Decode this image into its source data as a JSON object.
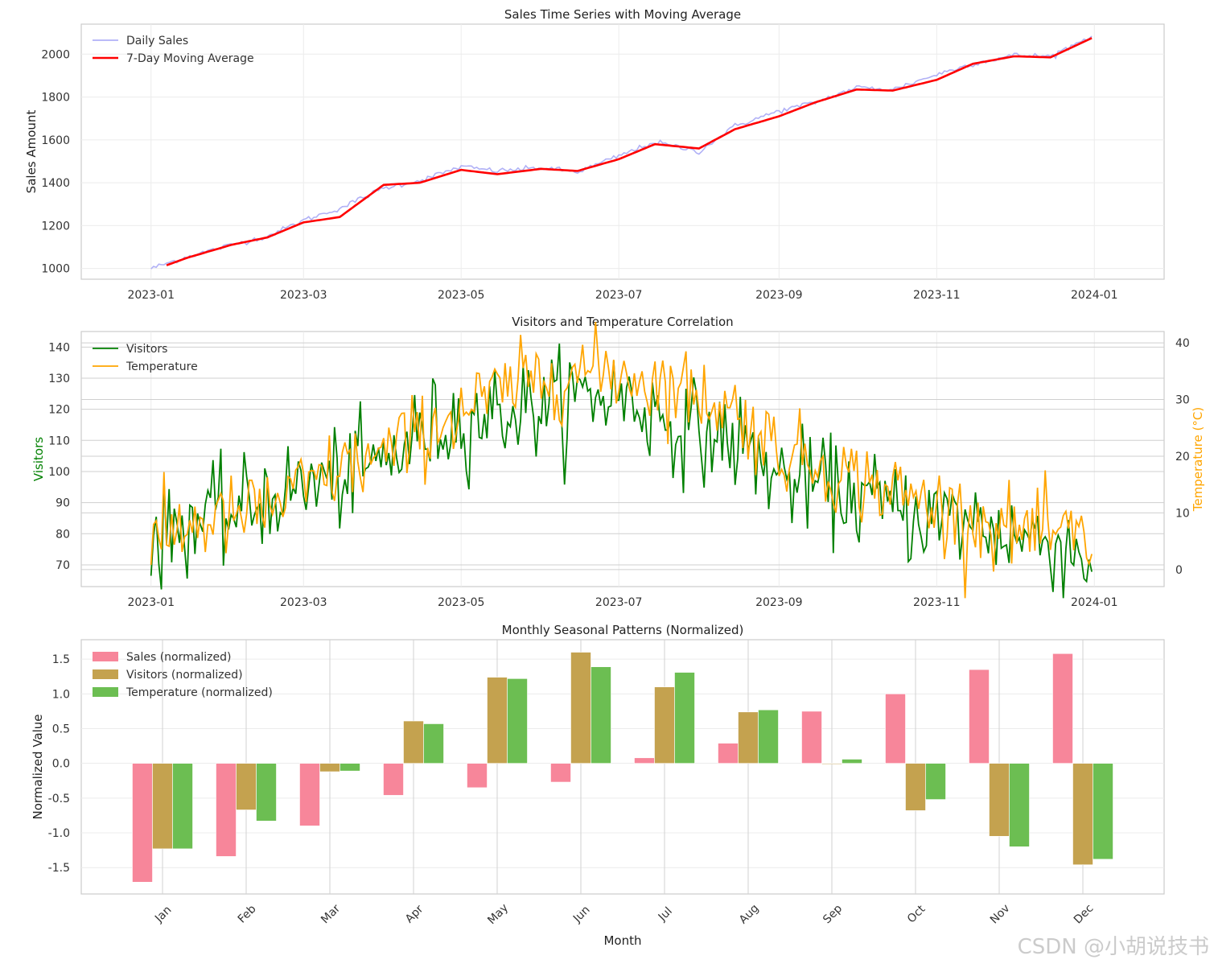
{
  "watermark": "CSDN @小胡说技书",
  "colors": {
    "daily": "#a3a3f5",
    "ma": "#ff0000",
    "visitors": "#008000",
    "temperature": "#ffa500",
    "sales_bar": "#f7869a",
    "visitors_bar": "#c4a24f",
    "temperature_bar": "#6cbe52"
  },
  "chart_data": [
    {
      "type": "line",
      "title": "Sales Time Series with Moving Average",
      "xlabel": "",
      "ylabel": "Sales Amount",
      "x_ticks": [
        "2023-01",
        "2023-03",
        "2023-05",
        "2023-07",
        "2023-09",
        "2023-11",
        "2024-01"
      ],
      "y_ticks": [
        1000,
        1200,
        1400,
        1600,
        1800,
        2000
      ],
      "ylim": [
        950,
        2140
      ],
      "legend": "top-left",
      "grid": true,
      "series": [
        {
          "name": "Daily Sales",
          "color": "#a3a3f5",
          "x": [
            "2023-01-01",
            "2023-01-15",
            "2023-02-01",
            "2023-02-15",
            "2023-03-01",
            "2023-03-15",
            "2023-04-01",
            "2023-04-15",
            "2023-05-01",
            "2023-05-15",
            "2023-06-01",
            "2023-06-15",
            "2023-07-01",
            "2023-07-15",
            "2023-08-01",
            "2023-08-15",
            "2023-09-01",
            "2023-09-15",
            "2023-10-01",
            "2023-10-15",
            "2023-11-01",
            "2023-11-15",
            "2023-12-01",
            "2023-12-15",
            "2023-12-31"
          ],
          "values": [
            1000,
            1055,
            1110,
            1150,
            1225,
            1280,
            1375,
            1410,
            1475,
            1455,
            1470,
            1450,
            1525,
            1590,
            1545,
            1665,
            1735,
            1775,
            1845,
            1835,
            1905,
            1955,
            1995,
            1990,
            2085
          ]
        },
        {
          "name": "7-Day Moving Average",
          "color": "#ff0000",
          "x": [
            "2023-01-07",
            "2023-01-15",
            "2023-02-01",
            "2023-02-15",
            "2023-03-01",
            "2023-03-15",
            "2023-04-01",
            "2023-04-15",
            "2023-05-01",
            "2023-05-15",
            "2023-06-01",
            "2023-06-15",
            "2023-07-01",
            "2023-07-15",
            "2023-08-01",
            "2023-08-15",
            "2023-09-01",
            "2023-09-15",
            "2023-10-01",
            "2023-10-15",
            "2023-11-01",
            "2023-11-15",
            "2023-12-01",
            "2023-12-15",
            "2023-12-31"
          ],
          "values": [
            1015,
            1050,
            1110,
            1145,
            1215,
            1240,
            1390,
            1400,
            1460,
            1440,
            1465,
            1455,
            1510,
            1580,
            1560,
            1650,
            1710,
            1775,
            1835,
            1830,
            1880,
            1955,
            1990,
            1985,
            2075
          ]
        }
      ]
    },
    {
      "type": "line",
      "title": "Visitors and Temperature Correlation",
      "xlabel": "",
      "ylabel": "Visitors",
      "ylabel_right": "Temperature (°C)",
      "x_ticks": [
        "2023-01",
        "2023-03",
        "2023-05",
        "2023-07",
        "2023-09",
        "2023-11",
        "2024-01"
      ],
      "y_ticks": [
        70,
        80,
        90,
        100,
        110,
        120,
        130,
        140
      ],
      "y_ticks_right": [
        0,
        10,
        20,
        30,
        40
      ],
      "ylim": [
        63,
        145
      ],
      "ylim_right": [
        -3,
        42
      ],
      "legend": "top-left",
      "grid": true,
      "series": [
        {
          "name": "Visitors",
          "color": "#008000",
          "axis": "left",
          "x": [
            "2023-01-01",
            "2023-01-15",
            "2023-02-01",
            "2023-02-15",
            "2023-03-01",
            "2023-03-15",
            "2023-04-01",
            "2023-04-15",
            "2023-05-01",
            "2023-05-15",
            "2023-06-01",
            "2023-06-15",
            "2023-07-01",
            "2023-07-15",
            "2023-08-01",
            "2023-08-15",
            "2023-09-01",
            "2023-09-15",
            "2023-10-01",
            "2023-10-15",
            "2023-11-01",
            "2023-11-15",
            "2023-12-01",
            "2023-12-15",
            "2023-12-31"
          ],
          "values": [
            77,
            84,
            86,
            92,
            95,
            98,
            103,
            112,
            117,
            119,
            121,
            124,
            125,
            118,
            112,
            110,
            98,
            96,
            92,
            88,
            85,
            84,
            79,
            78,
            72
          ]
        },
        {
          "name": "Temperature",
          "color": "#ffa500",
          "axis": "right",
          "x": [
            "2023-01-01",
            "2023-01-15",
            "2023-02-01",
            "2023-02-15",
            "2023-03-01",
            "2023-03-15",
            "2023-04-01",
            "2023-04-15",
            "2023-05-01",
            "2023-05-15",
            "2023-06-01",
            "2023-06-15",
            "2023-07-01",
            "2023-07-15",
            "2023-08-01",
            "2023-08-15",
            "2023-09-01",
            "2023-09-15",
            "2023-10-01",
            "2023-10-15",
            "2023-11-01",
            "2023-11-15",
            "2023-12-01",
            "2023-12-15",
            "2023-12-31"
          ],
          "values": [
            4,
            8,
            9,
            11,
            14,
            18,
            20,
            24,
            28,
            31,
            34,
            35,
            35,
            33,
            31,
            28,
            21,
            19,
            16,
            14,
            11,
            9,
            7,
            6,
            5
          ]
        }
      ]
    },
    {
      "type": "bar",
      "title": "Monthly Seasonal Patterns (Normalized)",
      "xlabel": "Month",
      "ylabel": "Normalized Value",
      "categories": [
        "Jan",
        "Feb",
        "Mar",
        "Apr",
        "May",
        "Jun",
        "Jul",
        "Aug",
        "Sep",
        "Oct",
        "Nov",
        "Dec"
      ],
      "y_ticks": [
        -1.5,
        -1.0,
        -0.5,
        0.0,
        0.5,
        1.0,
        1.5
      ],
      "ylim": [
        -1.88,
        1.78
      ],
      "legend": "top-left",
      "grid": true,
      "series": [
        {
          "name": "Sales (normalized)",
          "color": "#f7869a",
          "values": [
            -1.71,
            -1.34,
            -0.9,
            -0.46,
            -0.35,
            -0.27,
            0.08,
            0.29,
            0.75,
            1.0,
            1.35,
            1.58
          ]
        },
        {
          "name": "Visitors (normalized)",
          "color": "#c4a24f",
          "values": [
            -1.23,
            -0.67,
            -0.12,
            0.61,
            1.24,
            1.6,
            1.1,
            0.74,
            -0.01,
            -0.68,
            -1.05,
            -1.46
          ]
        },
        {
          "name": "Temperature (normalized)",
          "color": "#6cbe52",
          "values": [
            -1.23,
            -0.83,
            -0.11,
            0.57,
            1.22,
            1.39,
            1.31,
            0.77,
            0.06,
            -0.52,
            -1.2,
            -1.38
          ]
        }
      ]
    }
  ]
}
